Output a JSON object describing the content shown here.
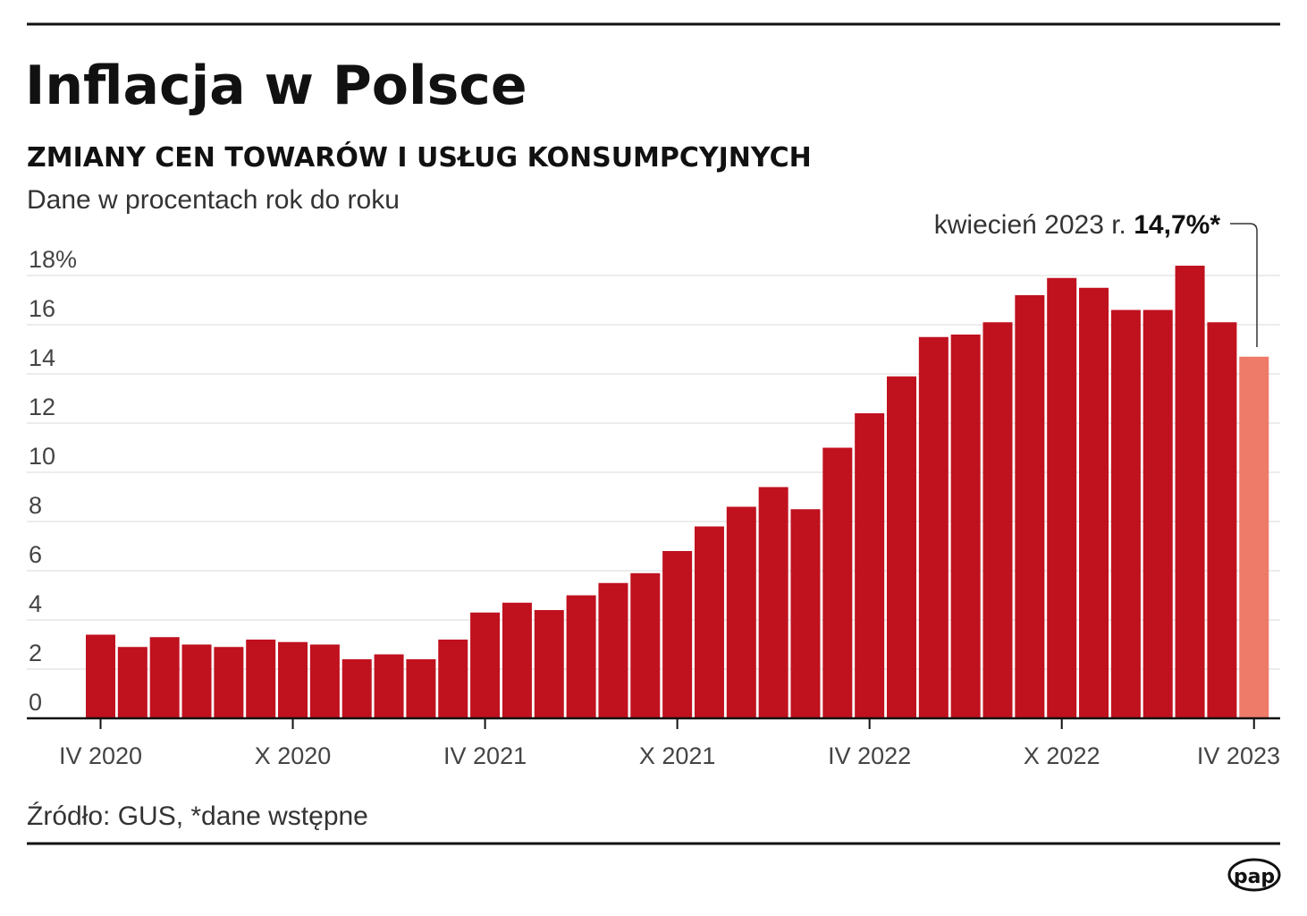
{
  "header": {
    "title": "Inflacja w Polsce",
    "subtitle": "ZMIANY CEN TOWARÓW I USŁUG KONSUMPCYJNYCH",
    "unit_note": "Dane w procentach rok do roku"
  },
  "annotation": {
    "text": "kwiecień 2023 r.",
    "value": "14,7%*"
  },
  "footer": {
    "source": "Źródło: GUS, *dane wstępne",
    "logo": "pap"
  },
  "colors": {
    "bar": "#c0111f",
    "highlight": "#ee7a6a",
    "grid": "#d9d9d9",
    "axis": "#111111"
  },
  "chart_data": {
    "type": "bar",
    "title": "Inflacja w Polsce",
    "ylim": [
      0,
      18
    ],
    "grid": true,
    "y_ticks": [
      "0",
      "2",
      "4",
      "6",
      "8",
      "10",
      "12",
      "14",
      "16",
      "18%"
    ],
    "x_tick_labels": [
      {
        "index": 0,
        "label": "IV 2020"
      },
      {
        "index": 6,
        "label": "X 2020"
      },
      {
        "index": 12,
        "label": "IV 2021"
      },
      {
        "index": 18,
        "label": "X 2021"
      },
      {
        "index": 24,
        "label": "IV 2022"
      },
      {
        "index": 30,
        "label": "X 2022"
      },
      {
        "index": 36,
        "label": "IV 2023"
      }
    ],
    "highlight_index": 36,
    "values": [
      3.4,
      2.9,
      3.3,
      3.0,
      2.9,
      3.2,
      3.1,
      3.0,
      2.4,
      2.6,
      2.4,
      3.2,
      4.3,
      4.7,
      4.4,
      5.0,
      5.5,
      5.9,
      6.8,
      7.8,
      8.6,
      9.4,
      8.5,
      11.0,
      12.4,
      13.9,
      15.5,
      15.6,
      16.1,
      17.2,
      17.9,
      17.5,
      16.6,
      16.6,
      18.4,
      16.1,
      14.7
    ]
  }
}
